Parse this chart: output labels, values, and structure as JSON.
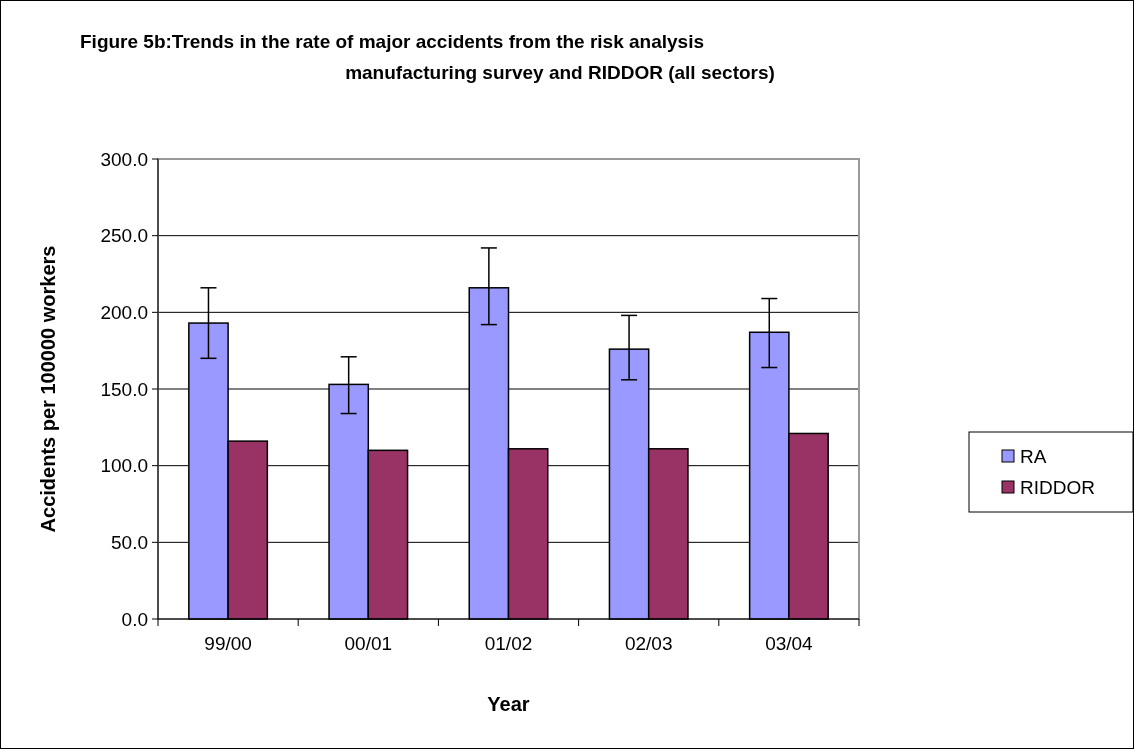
{
  "chart_data": {
    "type": "bar",
    "title": "Figure 5b:Trends in the rate of major accidents from the risk analysis\nmanufacturing survey and RIDDOR (all sectors)",
    "xlabel": "Year",
    "ylabel": "Accidents per 100000 workers",
    "categories": [
      "99/00",
      "00/01",
      "01/02",
      "02/03",
      "03/04"
    ],
    "series": [
      {
        "name": "RA",
        "color": "#9999ff",
        "values": [
          193,
          153,
          216,
          176,
          187
        ],
        "errors": [
          [
            170,
            216
          ],
          [
            134,
            171
          ],
          [
            192,
            242
          ],
          [
            156,
            198
          ],
          [
            164,
            209
          ]
        ]
      },
      {
        "name": "RIDDOR",
        "color": "#993366",
        "values": [
          116,
          110,
          111,
          111,
          121
        ]
      }
    ],
    "ylim": [
      0,
      300
    ],
    "yticks": [
      {
        "value": 0,
        "label": "0.0"
      },
      {
        "value": 50,
        "label": "50.0"
      },
      {
        "value": 100,
        "label": "100.0"
      },
      {
        "value": 150,
        "label": "150.0"
      },
      {
        "value": 200,
        "label": "200.0"
      },
      {
        "value": 250,
        "label": "250.0"
      },
      {
        "value": 300,
        "label": "300.0"
      }
    ],
    "grid": "y",
    "legend": "right"
  }
}
